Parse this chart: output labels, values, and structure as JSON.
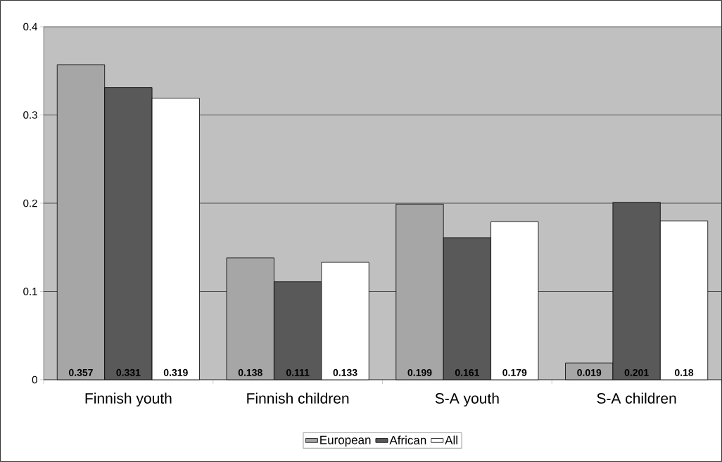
{
  "chart_data": {
    "type": "bar",
    "categories": [
      "Finnish youth",
      "Finnish children",
      "S-A youth",
      "S-A children"
    ],
    "series": [
      {
        "name": "European",
        "color": "#a6a6a6",
        "values": [
          0.357,
          0.138,
          0.199,
          0.019
        ]
      },
      {
        "name": "African",
        "color": "#595959",
        "values": [
          0.331,
          0.111,
          0.161,
          0.201
        ]
      },
      {
        "name": "All",
        "color": "#ffffff",
        "values": [
          0.319,
          0.133,
          0.179,
          0.18
        ]
      }
    ],
    "ylim": [
      0,
      0.4
    ],
    "yticks": [
      0,
      0.1,
      0.2,
      0.3,
      0.4
    ],
    "grid": "y",
    "legend": "bottom",
    "data_labels": true
  }
}
